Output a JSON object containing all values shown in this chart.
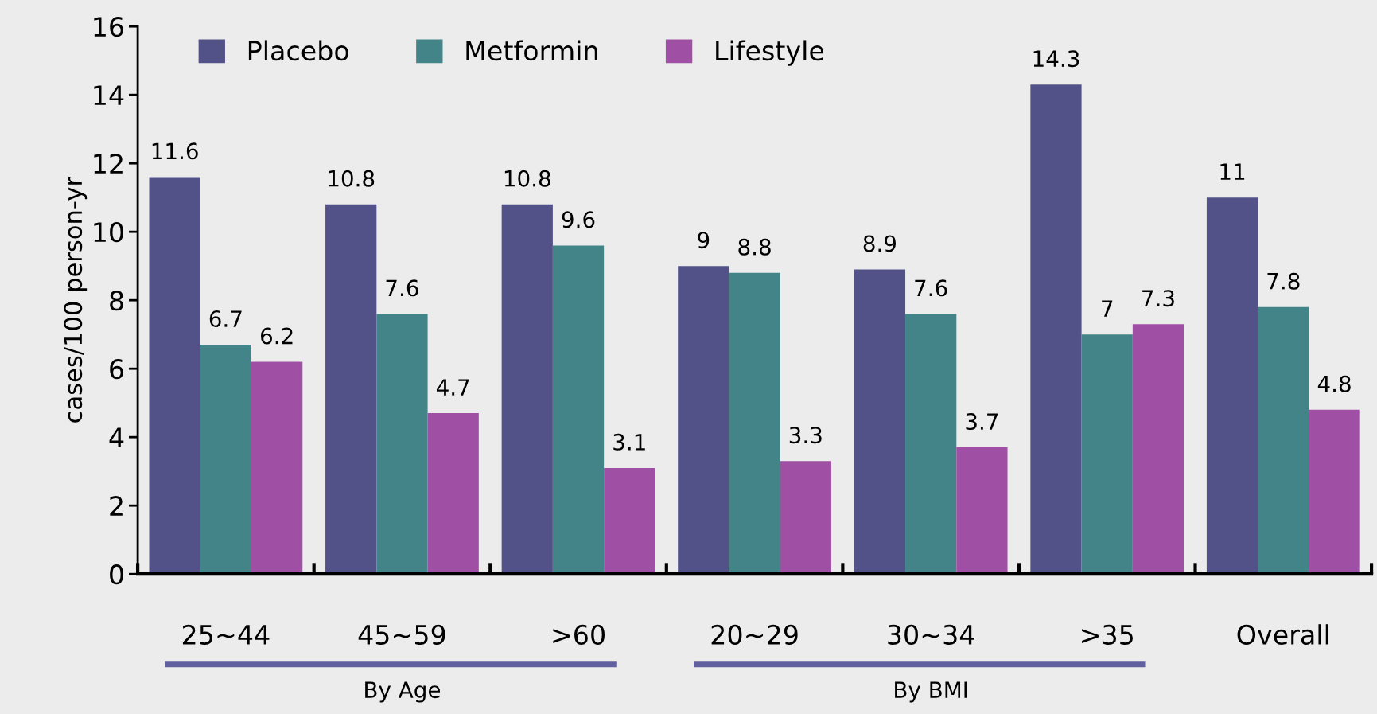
{
  "chart_data": {
    "type": "bar",
    "categories": [
      "25~44",
      "45~59",
      ">60",
      "20~29",
      "30~34",
      ">35",
      "Overall"
    ],
    "series": [
      {
        "name": "Placebo",
        "color": "#525288",
        "values": [
          11.6,
          10.8,
          10.8,
          9,
          8.9,
          14.3,
          11
        ]
      },
      {
        "name": "Metformin",
        "color": "#428488",
        "values": [
          6.7,
          7.6,
          9.6,
          8.8,
          7.6,
          7,
          7.8
        ]
      },
      {
        "name": "Lifestyle",
        "color": "#a050a4",
        "values": [
          6.2,
          4.7,
          3.1,
          3.3,
          3.7,
          7.3,
          4.8
        ]
      }
    ],
    "ylabel": "cases/100 person-yr",
    "ylim": [
      0,
      16
    ],
    "yticks": [
      0,
      2,
      4,
      6,
      8,
      10,
      12,
      14,
      16
    ],
    "annotations": [
      "By Age",
      "By BMI"
    ],
    "data_labels": true,
    "grid": false,
    "legend": "top left"
  }
}
